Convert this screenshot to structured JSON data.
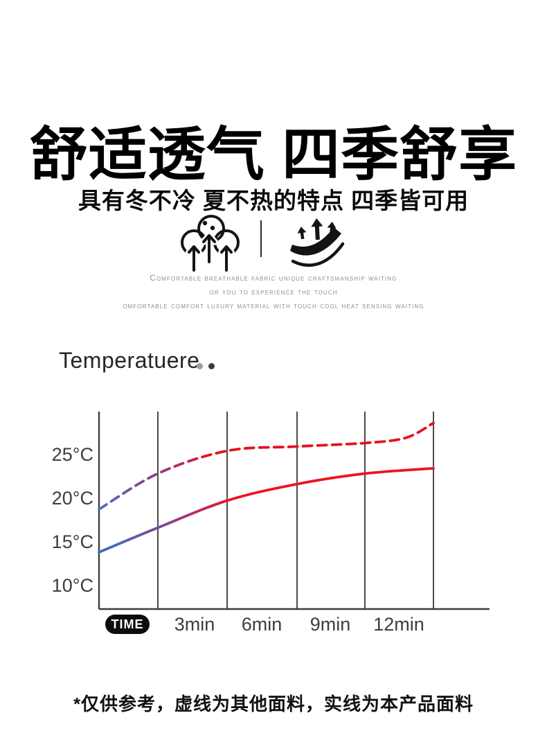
{
  "header": {
    "title": "舒适透气 四季舒享",
    "subtitle": "具有冬不冷 夏不热的特点 四季皆可用"
  },
  "features": {
    "description_lines": [
      "Comfortable breathable fabric unique craftsmanship waiting",
      "or you to experience the touch",
      "omfortable comfort luxury material with touch cool heat sensing waiting"
    ]
  },
  "chart_data": {
    "type": "line",
    "title": "Temperatuere",
    "xlabel": "TIME",
    "x_tick_labels": [
      "3min",
      "6min",
      "9min",
      "12min"
    ],
    "y_tick_labels": [
      "25°C",
      "20°C",
      "15°C",
      "10°C"
    ],
    "x_unit": "min",
    "y_unit": "°C",
    "xlim_min": [
      0,
      15
    ],
    "ylim_c": [
      7.5,
      30
    ],
    "grid": "vertical-only",
    "gridline_color": "#4a4a4a",
    "series": [
      {
        "name": "虚线-其他面料",
        "style": "dashed",
        "x_min": [
          0,
          3,
          6,
          9,
          12,
          13.8,
          15
        ],
        "temp_c": [
          18.8,
          22.9,
          25.5,
          26.0,
          26.4,
          27.0,
          28.7
        ],
        "color_start": "#4a72c4",
        "color_mid": "#8a4191",
        "color_end": "#e8111e"
      },
      {
        "name": "实线-本产品面料",
        "style": "solid",
        "x_min": [
          0,
          3,
          6,
          9,
          12,
          15
        ],
        "temp_c": [
          13.9,
          16.7,
          19.8,
          21.7,
          22.9,
          23.5
        ],
        "color_start": "#3f6cc0",
        "color_mid": "#8a4191",
        "color_end": "#ee1320"
      }
    ],
    "legend_dots": [
      {
        "name": "dot-light",
        "color": "#9e9e9e"
      },
      {
        "name": "dot-dark",
        "color": "#3c3c3c"
      }
    ]
  },
  "footnote": "*仅供参考，虚线为其他面料，实线为本产品面料"
}
